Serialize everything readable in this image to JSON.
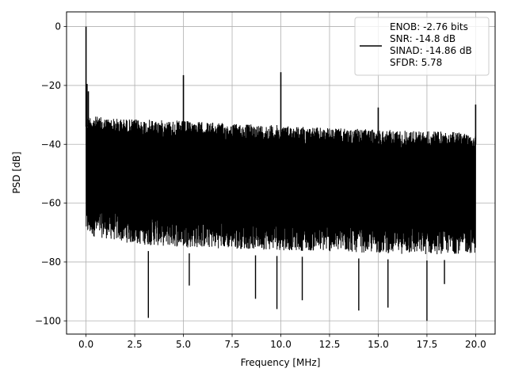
{
  "chart_data": {
    "type": "line",
    "xlabel": "Frequency [MHz]",
    "ylabel": "PSD [dB]",
    "xlim": [
      -1.0,
      21.0
    ],
    "ylim": [
      -104.5,
      5.0
    ],
    "xticks": [
      0.0,
      2.5,
      5.0,
      7.5,
      10.0,
      12.5,
      15.0,
      17.5,
      20.0
    ],
    "xtick_labels": [
      "0.0",
      "2.5",
      "5.0",
      "7.5",
      "10.0",
      "12.5",
      "15.0",
      "17.5",
      "20.0"
    ],
    "yticks": [
      0,
      -20,
      -40,
      -60,
      -80,
      -100
    ],
    "ytick_labels": [
      "0",
      "−20",
      "−40",
      "−60",
      "−80",
      "−100"
    ],
    "grid": true,
    "line_color": "#000000",
    "legend": {
      "placement": "top-right",
      "entries": [
        "ENOB: -2.76 bits\nSNR: -14.8 dB\nSINAD: -14.86 dB\nSFDR: 5.78"
      ],
      "lines": [
        "ENOB: -2.76 bits",
        "SNR: -14.8 dB",
        "SINAD: -14.86 dB",
        "SFDR: 5.78"
      ]
    },
    "series": [
      {
        "noise_floor": {
          "x": [
            0.0,
            1.0,
            2.5,
            5.0,
            7.5,
            10.0,
            12.5,
            15.0,
            17.5,
            20.0
          ],
          "upper_envelope": [
            -30,
            -31,
            -31.5,
            -32,
            -33,
            -33.5,
            -34.5,
            -35,
            -35.5,
            -36
          ],
          "lower_envelope": [
            -75,
            -76,
            -78,
            -79,
            -79.5,
            -80,
            -80.5,
            -81,
            -81.5,
            -81
          ]
        },
        "spikes": [
          {
            "x": 0.0,
            "y": 0.0
          },
          {
            "x": 0.05,
            "y": -19.5
          },
          {
            "x": 0.12,
            "y": -22.0
          },
          {
            "x": 5.0,
            "y": -16.5
          },
          {
            "x": 10.0,
            "y": -15.5
          },
          {
            "x": 15.0,
            "y": -27.5
          },
          {
            "x": 20.0,
            "y": -26.5
          }
        ],
        "dips": [
          {
            "x": 3.2,
            "y": -99.0
          },
          {
            "x": 5.3,
            "y": -88.0
          },
          {
            "x": 8.7,
            "y": -92.5
          },
          {
            "x": 9.8,
            "y": -96.0
          },
          {
            "x": 11.1,
            "y": -93.0
          },
          {
            "x": 14.0,
            "y": -96.5
          },
          {
            "x": 15.5,
            "y": -95.5
          },
          {
            "x": 17.5,
            "y": -100.0
          },
          {
            "x": 18.4,
            "y": -87.5
          }
        ]
      }
    ]
  }
}
